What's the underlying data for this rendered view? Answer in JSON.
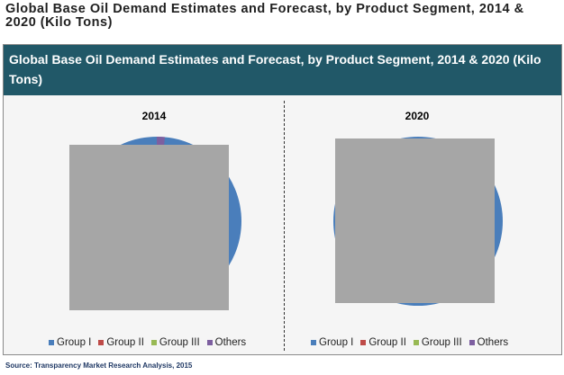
{
  "page_title": "Global Base Oil Demand Estimates and Forecast, by Product Segment, 2014 & 2020 (Kilo Tons)",
  "source_note": "Source: Transparency Market Research Analysis, 2015",
  "colors": {
    "banner": "#215868",
    "group_i": "#4a7ebb",
    "group_ii": "#be4b48",
    "group_iii": "#98b954",
    "others": "#7d5fa0",
    "overlay": "#a6a6a6"
  },
  "chart_data": [
    {
      "type": "pie",
      "title": "Global Base Oil Demand Estimates and Forecast, by Product Segment, 2014 & 2020 (Kilo Tons)",
      "panel_label": "2014",
      "categories": [
        "Group I",
        "Group II",
        "Group III",
        "Others"
      ],
      "values": [
        null,
        null,
        null,
        null
      ],
      "legend": "bottom"
    },
    {
      "type": "pie",
      "title": "Global Base Oil Demand Estimates and Forecast, by Product Segment, 2014 & 2020 (Kilo Tons)",
      "panel_label": "2020",
      "categories": [
        "Group I",
        "Group II",
        "Group III",
        "Others"
      ],
      "values": [
        null,
        null,
        null,
        null
      ],
      "legend": "bottom"
    }
  ]
}
